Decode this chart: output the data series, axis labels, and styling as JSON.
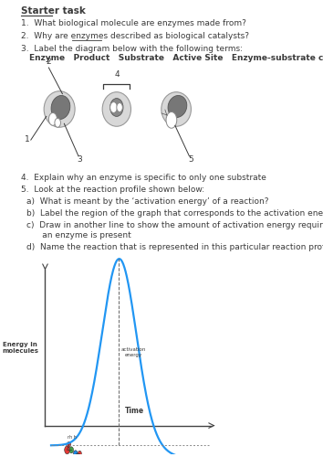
{
  "title": "Starter task",
  "questions": [
    "1.  What biological molecule are enzymes made from?",
    "2.  Why are enzymes described as biological catalysts?",
    "3.  Label the diagram below with the following terms:"
  ],
  "label_terms": "Enzyme   Product   Substrate   Active Site   Enzyme-substrate complex",
  "q4": "4.  Explain why an enzyme is specific to only one substrate",
  "q5": "5.  Look at the reaction profile shown below:",
  "q5a": "a)  What is meant by the ‘activation energy’ of a reaction?",
  "q5b": "b)  Label the region of the graph that corresponds to the activation energy",
  "q5c_1": "c)  Draw in another line to show the amount of activation energy required when",
  "q5c_2": "      an enzyme is present",
  "q5d": "d)  Name the reaction that is represented in this particular reaction profile",
  "energy_label": "Energy in\nmolecules",
  "time_label": "Time",
  "bg_color": "#ffffff",
  "text_color": "#3a3a3a",
  "font_size": 6.5
}
